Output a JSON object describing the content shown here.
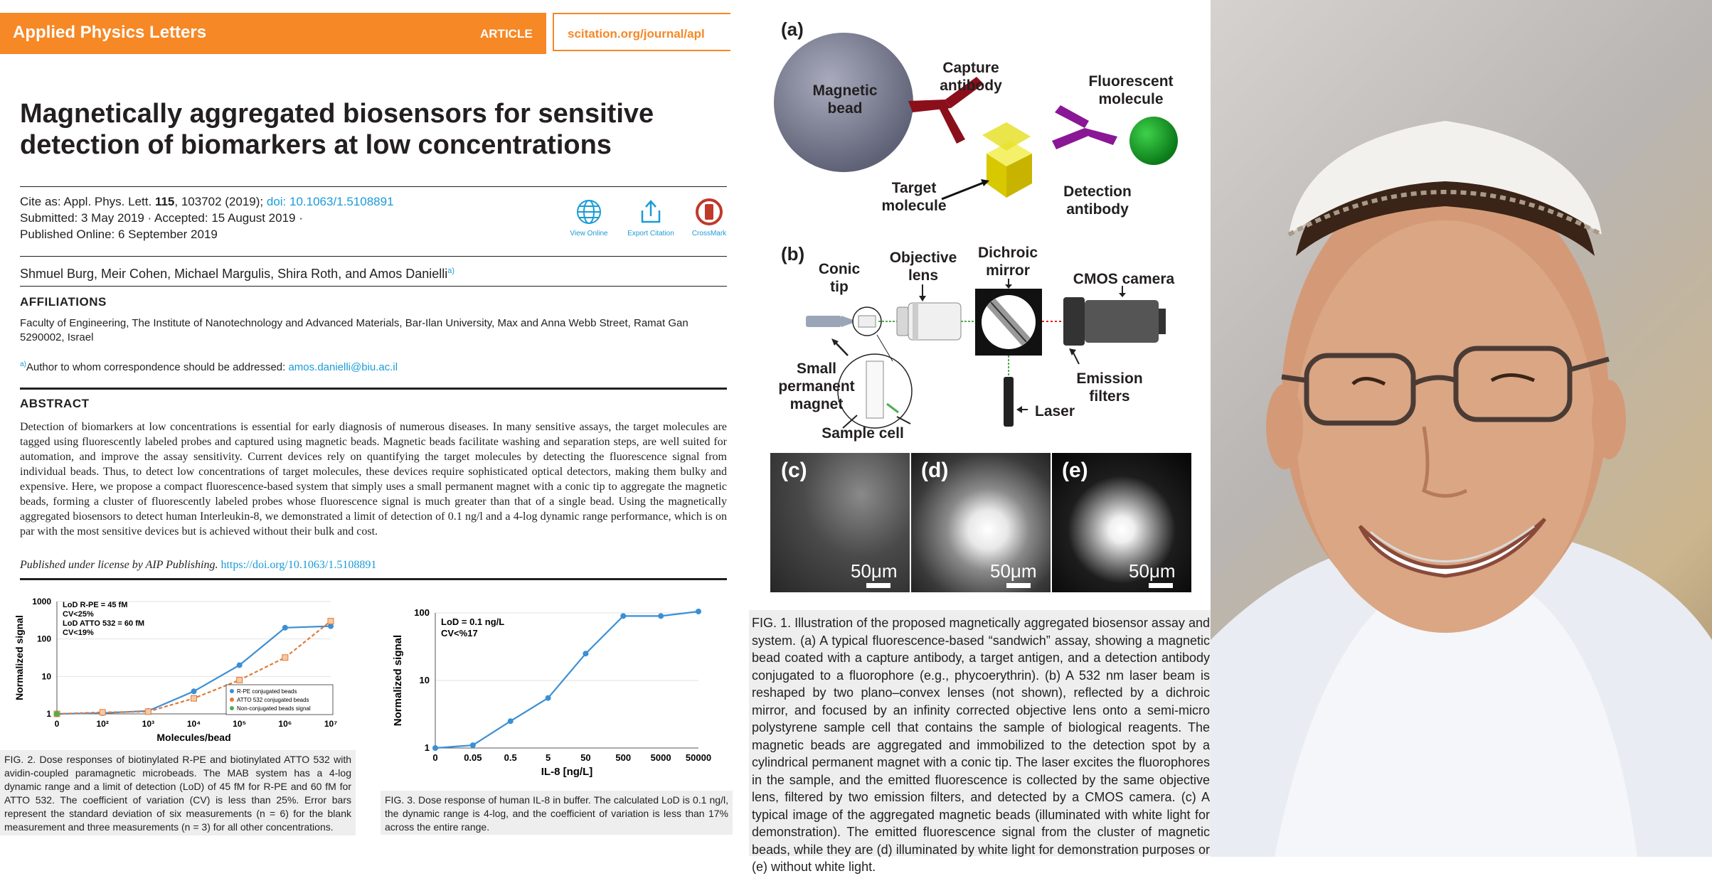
{
  "header": {
    "journal": "Applied Physics Letters",
    "article_label": "ARTICLE",
    "url": "scitation.org/journal/apl"
  },
  "paper": {
    "title": "Magnetically aggregated biosensors for sensitive detection of biomarkers at low concentrations",
    "cite_prefix": "Cite as: Appl. Phys. Lett. ",
    "cite_volume": "115",
    "cite_rest": ", 103702 (2019); ",
    "doi": "doi: 10.1063/1.5108891",
    "submitted": "Submitted: 3 May 2019 · Accepted: 15 August 2019 ·",
    "published": "Published Online: 6 September 2019",
    "icons": [
      {
        "icon": "globe-icon",
        "label": "View Online"
      },
      {
        "icon": "export-icon",
        "label": "Export Citation"
      },
      {
        "icon": "crossmark-icon",
        "label": "CrossMark"
      }
    ],
    "authors": "Shmuel Burg, Meir Cohen, Michael Margulis, Shira Roth, and Amos Danielli",
    "author_sup": "a)",
    "affiliations_heading": "AFFILIATIONS",
    "affiliation": "Faculty of Engineering, The Institute of Nanotechnology and Advanced Materials, Bar-Ilan University, Max and Anna Webb Street, Ramat Gan 5290002, Israel",
    "corr_sup": "a)",
    "corr_text": "Author to whom correspondence should be addressed: ",
    "corr_email": "amos.danielli@biu.ac.il",
    "abstract_heading": "ABSTRACT",
    "abstract": "Detection of biomarkers at low concentrations is essential for early diagnosis of numerous diseases. In many sensitive assays, the target molecules are tagged using fluorescently labeled probes and captured using magnetic beads. Magnetic beads facilitate washing and separation steps, are well suited for automation, and improve the assay sensitivity. Current devices rely on quantifying the target molecules by detecting the fluorescence signal from individual beads. Thus, to detect low concentrations of target molecules, these devices require sophisticated optical detectors, making them bulky and expensive. Here, we propose a compact fluorescence-based system that simply uses a small permanent magnet with a conic tip to aggregate the magnetic beads, forming a cluster of fluorescently labeled probes whose fluorescence signal is much greater than that of a single bead. Using the magnetically aggregated biosensors to detect human Interleukin-8, we demonstrated a limit of detection of 0.1 ng/l and a 4-log dynamic range performance, which is on par with the most sensitive devices but is achieved without their bulk and cost.",
    "license_text": "Published under license by AIP Publishing. ",
    "license_link": "https://doi.org/10.1063/1.5108891"
  },
  "fig2": {
    "caption": "FIG. 2. Dose responses of biotinylated R-PE and biotinylated ATTO 532 with avidin-coupled paramagnetic microbeads. The MAB system has a 4-log dynamic range and a limit of detection (LoD) of 45 fM for R-PE and 60 fM for ATTO 532. The coefficient of variation (CV) is less than 25%. Error bars represent the standard deviation of six measurements (n = 6) for the blank measurement and three measurements (n = 3) for all other concentrations."
  },
  "fig3": {
    "caption": "FIG. 3. Dose response of human IL-8 in buffer. The calculated LoD is 0.1 ng/l, the dynamic range is 4-log, and the coefficient of variation is less than 17% across the entire range."
  },
  "fig1": {
    "panel_a": "(a)",
    "panel_b": "(b)",
    "panel_c": "(c)",
    "panel_d": "(d)",
    "panel_e": "(e)",
    "magnetic_bead": "Magnetic bead",
    "capture_antibody": "Capture antibody",
    "target_molecule": "Target molecule",
    "fluorescent_molecule": "Fluorescent molecule",
    "detection_antibody": "Detection antibody",
    "conic_tip": "Conic tip",
    "objective_lens": "Objective lens",
    "dichroic_mirror": "Dichroic mirror",
    "cmos_camera": "CMOS camera",
    "small_magnet": "Small permanent magnet",
    "emission_filters": "Emission filters",
    "laser": "Laser",
    "sample_cell": "Sample cell",
    "scale": "50μm",
    "caption": "FIG. 1. Illustration of the proposed magnetically aggregated biosensor assay and system. (a) A typical fluorescence-based “sandwich” assay, showing a magnetic bead coated with a capture antibody, a target antigen, and a detection antibody conjugated to a fluorophore (e.g., phycoerythrin). (b) A 532 nm laser beam is reshaped by two plano–convex lenses (not shown), reflected by a dichroic mirror, and focused by an infinity corrected objective lens onto a semi-micro polystyrene sample cell that contains the sample of biological reagents. The magnetic beads are aggregated and immobilized to the detection spot by a cylindrical permanent magnet with a conic tip. The laser excites the fluorophores in the sample, and the emitted fluorescence is collected by the same objective lens, filtered by two emission filters, and detected by a CMOS camera. (c) A typical image of the aggregated magnetic beads (illuminated with white light for demonstration). The emitted fluorescence signal from the cluster of magnetic beads, while they are (d) illuminated by white light for demonstration purposes or (e) without white light."
  },
  "chart_data": [
    {
      "type": "line",
      "ylabel": "Normalized signal",
      "xlabel": "Molecules/bead",
      "x_ticks": [
        "0",
        "10²",
        "10³",
        "10⁴",
        "10⁵",
        "10⁶",
        "10⁷"
      ],
      "y_ticks": [
        "1",
        "10",
        "100",
        "1000"
      ],
      "y_scale": "log",
      "ylim": [
        1,
        1000
      ],
      "annotation": [
        "LoD R-PE = 45 fM",
        "CV<25%",
        "LoD ATTO 532 = 60 fM",
        "CV<19%"
      ],
      "legend_placement": "bottom-right",
      "series": [
        {
          "name": "R-PE conjugated beads",
          "color": "#3b8fd4",
          "x": [
            "0",
            "10²",
            "10³",
            "10⁴",
            "10⁵",
            "10⁶",
            "10⁷"
          ],
          "values": [
            1,
            1.05,
            1.2,
            4,
            20,
            200,
            220
          ]
        },
        {
          "name": "ATTO 532 conjugated beads",
          "color": "#e07b39",
          "x": [
            "0",
            "10²",
            "10³",
            "10⁴",
            "10⁵",
            "10⁶",
            "10⁷"
          ],
          "values": [
            1,
            1.1,
            1.15,
            2.6,
            8,
            32,
            300
          ]
        },
        {
          "name": "Non-conjugated beads signal",
          "color": "#4caf50",
          "x": [
            "0"
          ],
          "values": [
            1
          ]
        }
      ]
    },
    {
      "type": "line",
      "ylabel": "Normalized signal",
      "xlabel": "IL-8 [ng/L]",
      "x_ticks": [
        "0",
        "0.05",
        "0.5",
        "5",
        "50",
        "500",
        "5000",
        "50000"
      ],
      "y_ticks": [
        "1",
        "10",
        "100"
      ],
      "y_scale": "log",
      "ylim": [
        1,
        100
      ],
      "annotation": [
        "LoD = 0.1 ng/L",
        "CV<%17"
      ],
      "series": [
        {
          "name": "",
          "color": "#3b8fd4",
          "x": [
            "0",
            "0.05",
            "0.5",
            "5",
            "50",
            "500",
            "5000",
            "50000"
          ],
          "values": [
            1,
            1.1,
            2.5,
            5.5,
            25,
            90,
            90,
            105
          ]
        }
      ]
    }
  ]
}
